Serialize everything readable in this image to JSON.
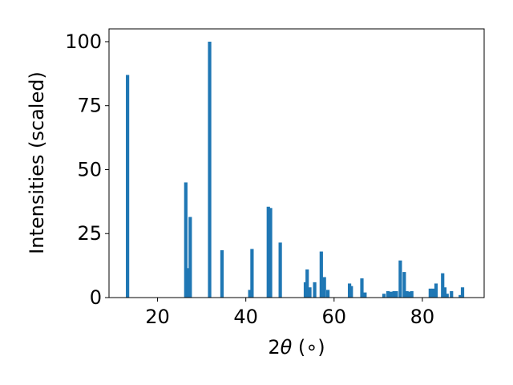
{
  "chart_data": {
    "type": "bar",
    "title": "",
    "xlabel_prefix": "2",
    "xlabel_symbol": "θ",
    "xlabel_suffix": " (∘)",
    "ylabel": "Intensities (scaled)",
    "xlim": [
      9,
      94
    ],
    "ylim": [
      0,
      105
    ],
    "xticks": [
      20,
      40,
      60,
      80
    ],
    "yticks": [
      0,
      25,
      50,
      75,
      100
    ],
    "bar_color": "#1f77b4",
    "grid": false,
    "legend": "none",
    "x": [
      13.2,
      26.4,
      26.9,
      27.4,
      31.8,
      34.6,
      40.9,
      41.4,
      45.1,
      45.6,
      47.8,
      53.5,
      53.9,
      54.5,
      55.6,
      57.1,
      57.8,
      58.6,
      63.5,
      63.9,
      66.3,
      67.0,
      71.3,
      72.2,
      72.9,
      73.6,
      74.1,
      75.0,
      75.9,
      76.5,
      77.1,
      77.6,
      81.8,
      82.5,
      83.1,
      84.6,
      85.1,
      85.6,
      86.6,
      88.6,
      89.1
    ],
    "y": [
      87,
      45,
      11.5,
      31.5,
      100,
      18.5,
      3,
      19,
      35.5,
      35,
      21.5,
      6,
      11,
      4,
      6,
      18,
      8,
      3,
      5.5,
      4.5,
      7.5,
      2,
      1.5,
      2.5,
      2.3,
      2.5,
      2.5,
      14.5,
      10,
      2.5,
      2.3,
      2.5,
      3.5,
      3.5,
      5.5,
      9.5,
      4,
      1.5,
      2.5,
      1,
      4
    ]
  }
}
